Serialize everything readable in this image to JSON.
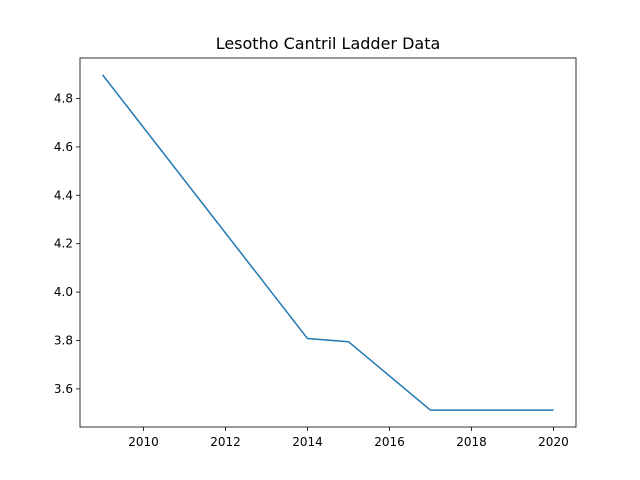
{
  "chart_data": {
    "type": "line",
    "title": "Lesotho Cantril Ladder Data",
    "xlabel": "",
    "ylabel": "",
    "xlim": [
      2008.45,
      2020.55
    ],
    "ylim": [
      3.4425,
      4.9675
    ],
    "xticks": [
      2010,
      2012,
      2014,
      2016,
      2018,
      2020
    ],
    "yticks": [
      3.6,
      3.8,
      4.0,
      4.2,
      4.4,
      4.6,
      4.8
    ],
    "grid": false,
    "legend": "none",
    "series": [
      {
        "color": "#1f77b4",
        "x": [
          2009,
          2014,
          2015,
          2017,
          2018,
          2019,
          2020
        ],
        "y": [
          4.898,
          3.808,
          3.795,
          3.512,
          3.512,
          3.512,
          3.512
        ]
      }
    ]
  }
}
